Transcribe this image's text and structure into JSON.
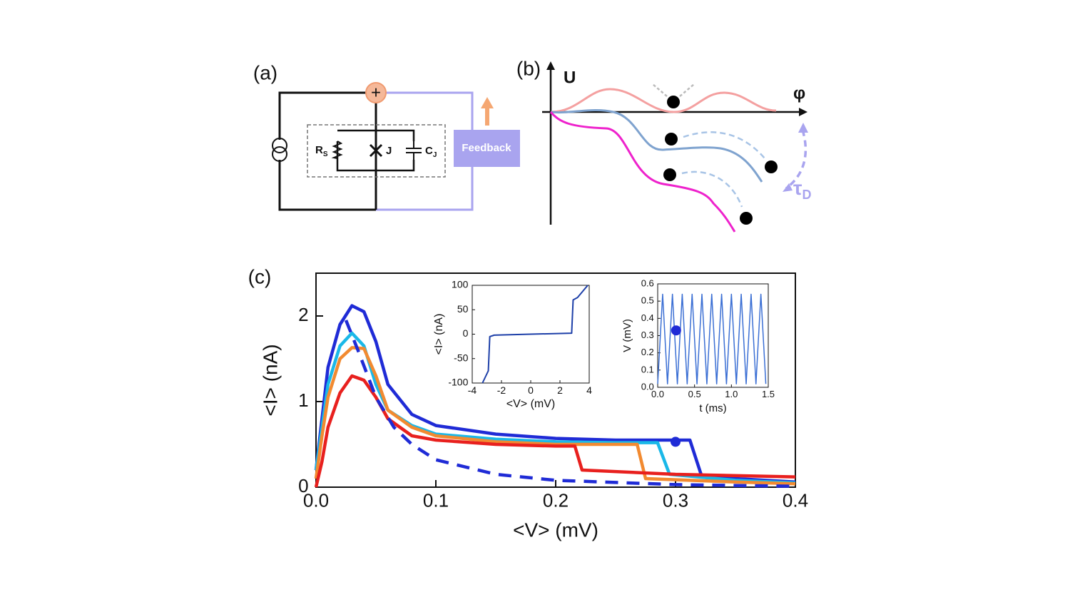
{
  "panels": {
    "a": {
      "label": "(a)",
      "plus": "+",
      "rs": {
        "text": "R",
        "sub": "S"
      },
      "j": "J",
      "cj": {
        "text": "C",
        "sub": "J"
      },
      "feedback": "Feedback"
    },
    "b": {
      "label": "(b)",
      "u": "U",
      "phi": "φ",
      "tau": {
        "text": "τ",
        "sub": "D"
      }
    },
    "c": {
      "label": "(c)"
    }
  },
  "chart_data": [
    {
      "type": "line",
      "xlabel": "<V> (mV)",
      "ylabel": "<I> (nA)",
      "xlim": [
        0,
        0.4
      ],
      "ylim": [
        0,
        2.5
      ],
      "xticks": [
        {
          "value": 0,
          "label": "0.0"
        },
        0.1,
        0.2,
        0.3,
        0.4
      ],
      "yticks": [
        0,
        1,
        2
      ],
      "series": [
        {
          "color": "#1f2bd6",
          "x": [
            0,
            0.005,
            0.01,
            0.02,
            0.03,
            0.04,
            0.05,
            0.06,
            0.08,
            0.1,
            0.15,
            0.2,
            0.25,
            0.3,
            0.312,
            0.322,
            0.35,
            0.4
          ],
          "values": [
            0.2,
            0.8,
            1.4,
            1.9,
            2.12,
            2.05,
            1.7,
            1.2,
            0.85,
            0.72,
            0.62,
            0.57,
            0.55,
            0.55,
            0.55,
            0.12,
            0.1,
            0.06
          ]
        },
        {
          "color": "#1ab8e8",
          "x": [
            0,
            0.005,
            0.01,
            0.02,
            0.03,
            0.04,
            0.05,
            0.06,
            0.08,
            0.1,
            0.15,
            0.2,
            0.25,
            0.285,
            0.295,
            0.35,
            0.4
          ],
          "values": [
            0.2,
            0.7,
            1.2,
            1.65,
            1.8,
            1.65,
            1.2,
            0.9,
            0.72,
            0.62,
            0.56,
            0.53,
            0.52,
            0.52,
            0.15,
            0.08,
            0.05
          ]
        },
        {
          "color": "#f28a30",
          "x": [
            0,
            0.005,
            0.01,
            0.02,
            0.03,
            0.04,
            0.05,
            0.06,
            0.08,
            0.1,
            0.15,
            0.2,
            0.25,
            0.268,
            0.275,
            0.35,
            0.4
          ],
          "values": [
            0.1,
            0.6,
            1.05,
            1.5,
            1.63,
            1.62,
            1.3,
            0.9,
            0.7,
            0.6,
            0.53,
            0.5,
            0.5,
            0.5,
            0.1,
            0.06,
            0.04
          ]
        },
        {
          "color": "#e8201e",
          "x": [
            0,
            0.005,
            0.01,
            0.02,
            0.03,
            0.04,
            0.05,
            0.06,
            0.08,
            0.1,
            0.15,
            0.2,
            0.216,
            0.222,
            0.3,
            0.4
          ],
          "values": [
            0,
            0.3,
            0.7,
            1.1,
            1.3,
            1.25,
            1.05,
            0.8,
            0.6,
            0.55,
            0.5,
            0.48,
            0.48,
            0.2,
            0.15,
            0.12
          ]
        },
        {
          "color": "#1f2bd6",
          "dash": true,
          "x": [
            0.025,
            0.035,
            0.05,
            0.065,
            0.08,
            0.1,
            0.15,
            0.2,
            0.3,
            0.4
          ],
          "values": [
            1.95,
            1.6,
            1.05,
            0.7,
            0.5,
            0.32,
            0.15,
            0.08,
            0.03,
            0.01
          ]
        }
      ],
      "points": [
        {
          "x": 0.3,
          "y": 0.53,
          "color": "#1f2bd6"
        }
      ]
    },
    {
      "type": "line",
      "xlabel": "<V> (mV)",
      "ylabel": "<I> (nA)",
      "xlim": [
        -4,
        4
      ],
      "ylim": [
        -100,
        100
      ],
      "xticks": [
        -4,
        -2,
        0,
        2,
        4
      ],
      "yticks": [
        -100,
        -50,
        0,
        50,
        100
      ],
      "series": [
        {
          "color": "#1d3fa8",
          "x": [
            -3.3,
            -2.9,
            -2.8,
            -2.5,
            0,
            2.8,
            2.9,
            3.2,
            3.9
          ],
          "values": [
            -100,
            -75,
            -5,
            -2,
            0,
            2,
            70,
            75,
            100
          ]
        }
      ]
    },
    {
      "type": "line",
      "xlabel": "t (ms)",
      "ylabel": "V (mV)",
      "xlim": [
        0,
        1.5
      ],
      "ylim": [
        0,
        0.6
      ],
      "xticks": [
        {
          "value": 0,
          "label": "0.0"
        },
        0.5,
        {
          "value": 1,
          "label": "1.0"
        },
        1.5
      ],
      "yticks": [
        {
          "value": 0,
          "label": "0.0"
        },
        0.1,
        0.2,
        0.3,
        0.4,
        0.5,
        0.6
      ],
      "series": [
        {
          "color": "#3b6fd4",
          "x": [
            0,
            0.067,
            0.133,
            0.2,
            0.267,
            0.333,
            0.4,
            0.467,
            0.533,
            0.6,
            0.667,
            0.733,
            0.8,
            0.867,
            0.933,
            1.0,
            1.067,
            1.133,
            1.2,
            1.267,
            1.333,
            1.4,
            1.467
          ],
          "values": [
            0.02,
            0.54,
            0.02,
            0.54,
            0.02,
            0.54,
            0.02,
            0.54,
            0.02,
            0.54,
            0.02,
            0.54,
            0.02,
            0.54,
            0.02,
            0.54,
            0.02,
            0.54,
            0.02,
            0.54,
            0.02,
            0.54,
            0.02
          ]
        }
      ],
      "points": [
        {
          "x": 0.25,
          "y": 0.33,
          "color": "#1f2bd6"
        }
      ]
    }
  ]
}
